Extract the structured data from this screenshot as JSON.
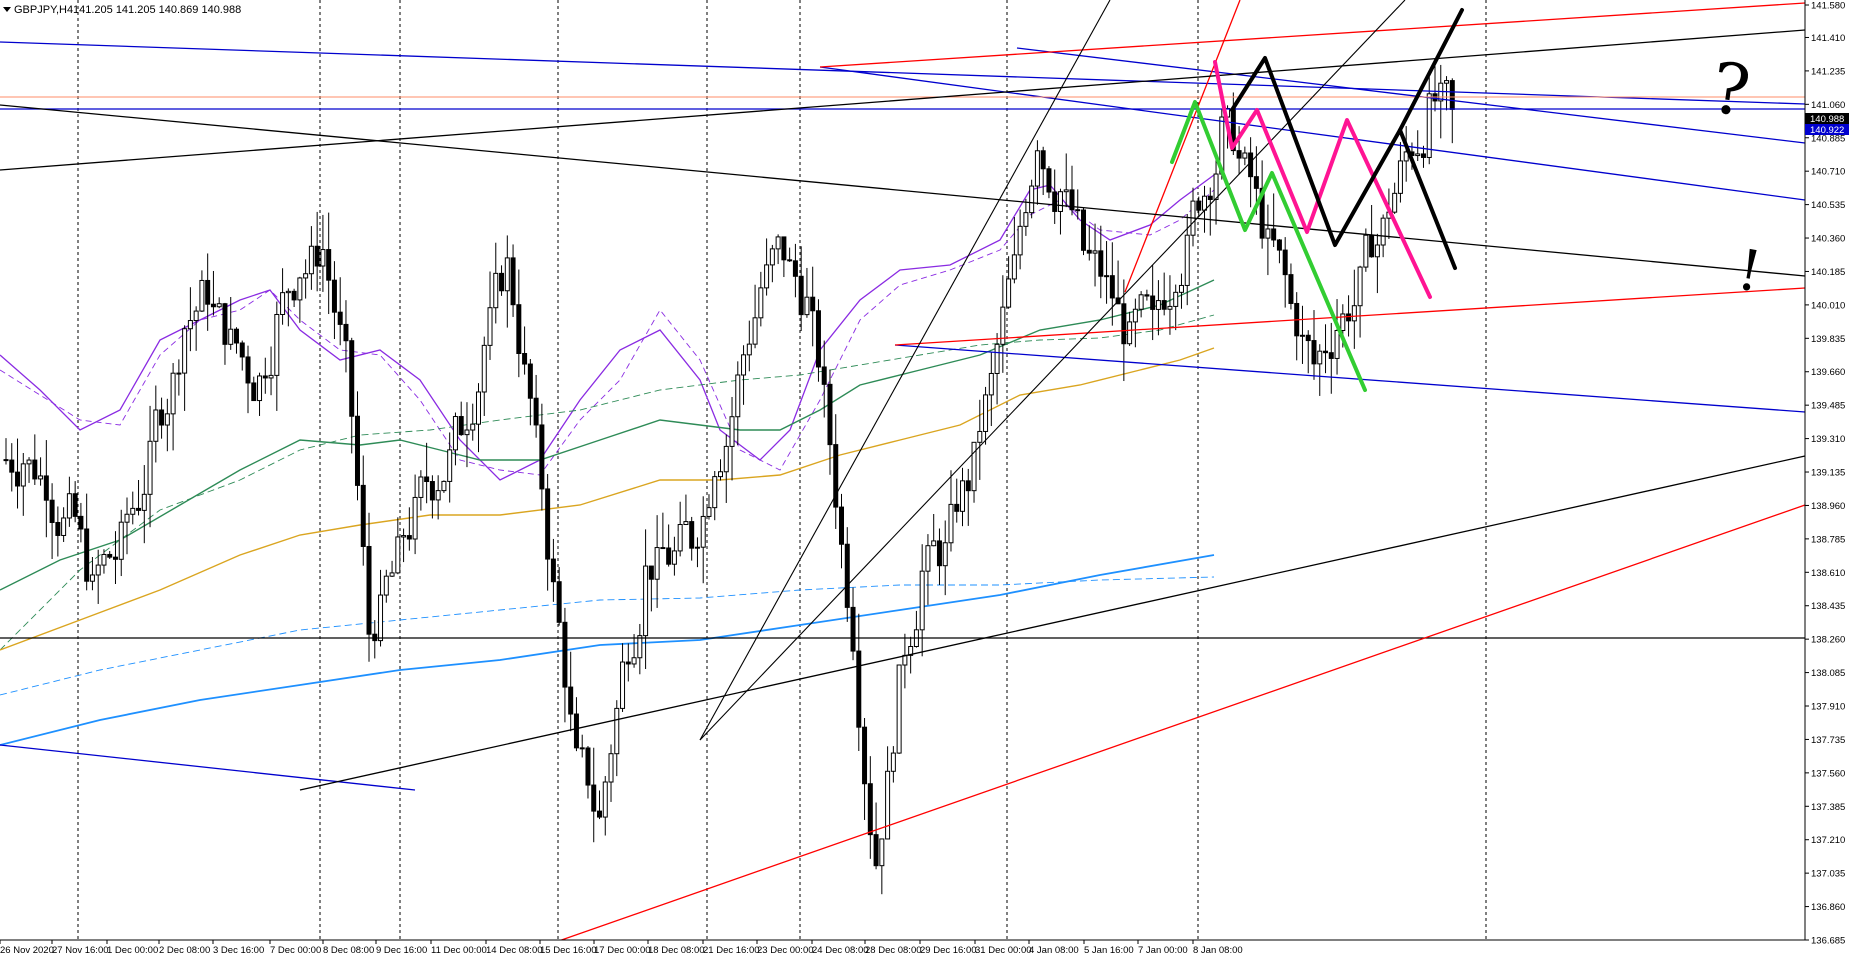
{
  "window": {
    "symbol_info": "GBPJPY,H4",
    "ohlc": "141.205 141.205 140.869 140.988"
  },
  "y_axis": {
    "ticks": [
      "141.580",
      "141.410",
      "141.235",
      "141.060",
      "140.885",
      "140.710",
      "140.535",
      "140.360",
      "140.185",
      "140.010",
      "139.835",
      "139.660",
      "139.485",
      "139.310",
      "139.135",
      "138.960",
      "138.785",
      "138.610",
      "138.435",
      "138.260",
      "138.085",
      "137.910",
      "137.735",
      "137.560",
      "137.385",
      "137.210",
      "137.035",
      "136.860",
      "136.685"
    ],
    "current_price": "140.988",
    "second_price": "140.922"
  },
  "x_axis": {
    "ticks": [
      "26 Nov 2020",
      "27 Nov 16:00",
      "1 Dec 00:00",
      "2 Dec 08:00",
      "3 Dec 16:00",
      "7 Dec 00:00",
      "8 Dec 08:00",
      "9 Dec 16:00",
      "11 Dec 00:00",
      "14 Dec 08:00",
      "15 Dec 16:00",
      "17 Dec 00:00",
      "18 Dec 08:00",
      "21 Dec 16:00",
      "23 Dec 00:00",
      "24 Dec 08:00",
      "28 Dec 08:00",
      "29 Dec 16:00",
      "31 Dec 00:00",
      "4 Jan 08:00",
      "5 Jan 16:00",
      "7 Jan 00:00",
      "8 Jan 08:00"
    ]
  },
  "annotations": {
    "question_mark": "?",
    "exclamation_mark": "!"
  },
  "colors": {
    "candle": "#000000",
    "ma_purple": "#8a2be2",
    "ma_green": "#2e8b57",
    "ma_orange": "#daa520",
    "ma_blue": "#1e90ff",
    "trend_blue": "#0000cd",
    "trend_red": "#ff0000",
    "trend_black": "#000000",
    "proj_green": "#32cd32",
    "proj_pink": "#ff1493",
    "proj_black": "#000000",
    "price_tag_black": "#000000",
    "price_tag_blue": "#0000cd",
    "price_line_orange": "#ff8c69"
  },
  "chart_data": {
    "type": "candlestick",
    "symbol": "GBPJPY",
    "timeframe": "H4",
    "ylim": [
      136.685,
      141.58
    ],
    "last_close": 140.988,
    "grid": "vertical dashed at date ticks",
    "approx_closes": [
      139.2,
      139.1,
      138.9,
      138.5,
      138.7,
      139.0,
      139.5,
      139.9,
      140.1,
      139.8,
      139.6,
      139.9,
      140.2,
      140.3,
      139.7,
      138.3,
      138.6,
      138.9,
      139.1,
      139.4,
      139.8,
      140.2,
      139.5,
      138.5,
      137.6,
      137.3,
      138.1,
      138.6,
      138.7,
      138.8,
      139.2,
      139.6,
      140.1,
      140.3,
      140.0,
      139.3,
      138.3,
      137.1,
      138.0,
      138.6,
      138.7,
      139.1,
      139.6,
      140.2,
      140.9,
      140.6,
      140.3,
      140.1,
      139.8,
      139.9,
      140.2,
      140.6,
      140.9,
      140.7,
      140.3,
      140.0,
      139.7,
      139.9,
      140.1,
      140.4,
      140.8,
      141.0,
      140.99
    ]
  }
}
